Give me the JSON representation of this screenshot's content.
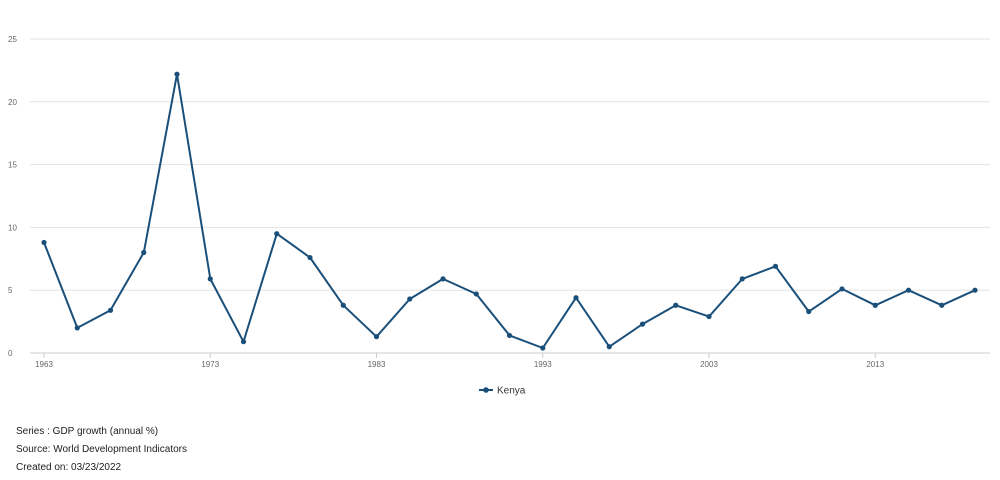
{
  "chart_data": {
    "type": "line",
    "title": "",
    "xlabel": "",
    "ylabel": "",
    "ylim": [
      0,
      25
    ],
    "yticks": [
      "0",
      "5",
      "10",
      "15",
      "20",
      "25"
    ],
    "xticks": [
      "1963",
      "1973",
      "1983",
      "1993",
      "2003",
      "2013"
    ],
    "grid": true,
    "legend_position": "bottom-center",
    "series": [
      {
        "name": "Kenya",
        "color": "#1a4f7a",
        "x": [
          1963,
          1965,
          1967,
          1969,
          1971,
          1973,
          1975,
          1977,
          1979,
          1981,
          1983,
          1985,
          1987,
          1989,
          1991,
          1993,
          1995,
          1997,
          1999,
          2001,
          2003,
          2005,
          2007,
          2009,
          2011,
          2013,
          2015,
          2017,
          2019
        ],
        "values": [
          8.8,
          2.0,
          3.4,
          8.0,
          22.2,
          5.9,
          0.9,
          9.5,
          7.6,
          3.8,
          1.3,
          4.3,
          5.9,
          4.7,
          1.4,
          0.4,
          4.4,
          0.5,
          2.3,
          3.8,
          2.9,
          5.9,
          6.9,
          3.3,
          5.1,
          3.8,
          5.0,
          3.8,
          5.0
        ]
      }
    ]
  },
  "footer": {
    "series_line": "Series : GDP growth (annual %)",
    "source_line": "Source: World Development Indicators",
    "created_line": "Created on: 03/23/2022"
  }
}
